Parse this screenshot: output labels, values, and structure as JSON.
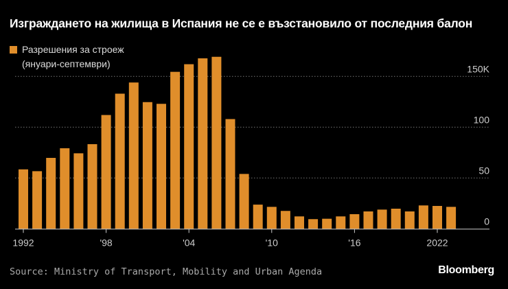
{
  "title": "Изграждането на жилища в Испания не се е възстановило от последния балон",
  "legend": {
    "line1": "Разрешения за строеж",
    "line2": "(януари-септември)"
  },
  "source": "Source: Ministry of Transport, Mobility and Urban Agenda",
  "brand": "Bloomberg",
  "chart_data": {
    "type": "bar",
    "title": "Изграждането на жилища в Испания не се е възстановило от последния балон",
    "series": [
      {
        "name": "Разрешения за строеж (януари-септември)",
        "color": "#e08e2b",
        "values": [
          58.5,
          56.7,
          69.8,
          79.3,
          74.3,
          83.3,
          112,
          133,
          144,
          124.7,
          123,
          154.5,
          162,
          167.8,
          169.3,
          108,
          54,
          23.8,
          21.6,
          17.6,
          12.2,
          9.5,
          9.9,
          12.2,
          14.4,
          17.1,
          18.9,
          19.8,
          17.1,
          23,
          22.5,
          21.6
        ]
      }
    ],
    "categories": [
      1992,
      1993,
      1994,
      1995,
      1996,
      1997,
      1998,
      1999,
      2000,
      2001,
      2002,
      2003,
      2004,
      2005,
      2006,
      2007,
      2008,
      2009,
      2010,
      2011,
      2012,
      2013,
      2014,
      2015,
      2016,
      2017,
      2018,
      2019,
      2020,
      2021,
      2022,
      2023
    ],
    "x_ticks": [
      {
        "year": 1992,
        "label": "1992"
      },
      {
        "year": 1998,
        "label": "'98"
      },
      {
        "year": 2004,
        "label": "'04"
      },
      {
        "year": 2010,
        "label": "'10"
      },
      {
        "year": 2016,
        "label": "'16"
      },
      {
        "year": 2022,
        "label": "2022"
      }
    ],
    "y_ticks": [
      {
        "value": 0,
        "label": "0"
      },
      {
        "value": 50,
        "label": "50"
      },
      {
        "value": 100,
        "label": "100"
      },
      {
        "value": 150,
        "label": "150K"
      }
    ],
    "ylim": [
      0,
      150
    ],
    "y_axis_side": "right",
    "grid": "horizontal dotted",
    "legend_position": "top-left"
  }
}
